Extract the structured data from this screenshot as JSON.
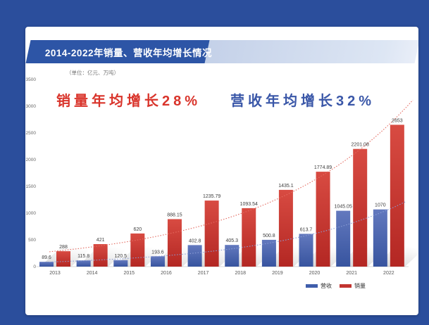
{
  "page": {
    "bg": "#2b4e9c",
    "card_bg": "#ffffff"
  },
  "header": {
    "title": "2014-2022年销量、营收年均增长情况",
    "banner_color": "#2d55a6"
  },
  "unit_note": "（单位：亿元、万吨）",
  "headline": {
    "sales_text": "销量年均增长28%",
    "sales_color": "#d9342b",
    "revenue_text": "营收年均增长32%",
    "revenue_color": "#3a57a8"
  },
  "legend": [
    {
      "label": "营收",
      "color": "#3f5dab"
    },
    {
      "label": "销量",
      "color": "#c23430"
    }
  ],
  "chart_data": {
    "type": "bar",
    "title": "2014-2022年销量、营收年均增长情况",
    "subtitle_left": "销量年均增长28%",
    "subtitle_right": "营收年均增长32%",
    "unit_note": "（单位：亿元、万吨）",
    "categories": [
      "2013",
      "2014",
      "2015",
      "2016",
      "2017",
      "2018",
      "2019",
      "2020",
      "2021",
      "2022"
    ],
    "series": [
      {
        "name": "营收",
        "color_top": "#6379be",
        "color_bottom": "#37549f",
        "trend_color": "#8b9dd6",
        "values": [
          89.6,
          115.8,
          120.5,
          193.6,
          402.8,
          405.3,
          500.8,
          613.7,
          1045.05,
          1070
        ],
        "labels": [
          "89.6",
          "115.8",
          "120.5",
          "193.6",
          "402.8",
          "405.3",
          "500.8",
          "613.7",
          "1045.05",
          "1070"
        ]
      },
      {
        "name": "销量",
        "color_top": "#d84b42",
        "color_bottom": "#b32723",
        "trend_color": "#e46a60",
        "values": [
          288,
          421,
          620,
          888.15,
          1235.79,
          1093.54,
          1435.1,
          1774.89,
          2201.08,
          2653
        ],
        "labels": [
          "288",
          "421",
          "620",
          "888.15",
          "1235.79",
          "1093.54",
          "1435.1",
          "1774.89",
          "2201.08",
          "2653"
        ]
      }
    ],
    "ylim": [
      0,
      3500
    ],
    "yticks": [
      0,
      500,
      1000,
      1500,
      2000,
      2500,
      3000,
      3500
    ],
    "grid": false,
    "trendlines": "exponential-dotted",
    "legend_position": "bottom-right"
  }
}
